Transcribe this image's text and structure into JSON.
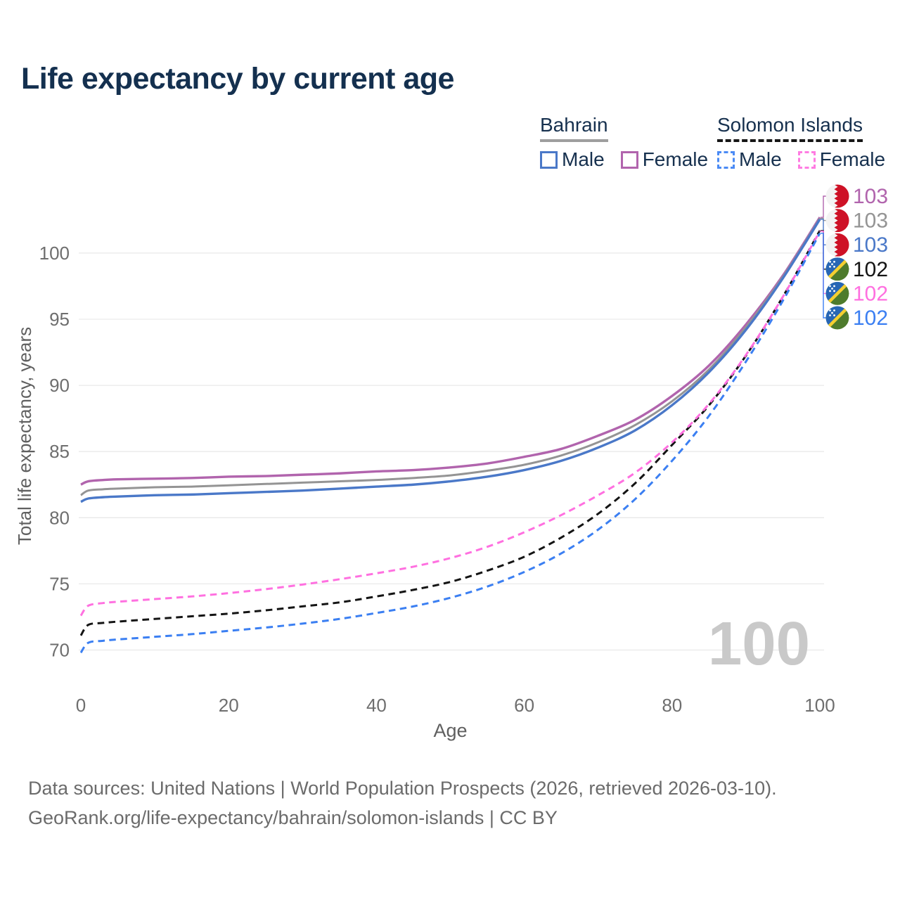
{
  "title": "Life expectancy by current age",
  "legend": {
    "groups": [
      {
        "name": "Bahrain",
        "underline_style": "solid",
        "underline_color": "#9e9e9e",
        "items": [
          {
            "label": "Male",
            "color": "#4a78c8",
            "dashed": false
          },
          {
            "label": "Female",
            "color": "#b164ad",
            "dashed": false
          }
        ]
      },
      {
        "name": "Solomon Islands",
        "underline_style": "dashed",
        "underline_color": "#161616",
        "items": [
          {
            "label": "Male",
            "color": "#4b8bf5",
            "dashed": true
          },
          {
            "label": "Female",
            "color": "#ff7ce2",
            "dashed": true
          }
        ]
      }
    ]
  },
  "watermark": "100",
  "chart_data": {
    "type": "line",
    "title": "Life expectancy by current age",
    "xlabel": "Age",
    "ylabel": "Total life expectancy, years",
    "xlim": [
      0,
      100
    ],
    "ylim": [
      69,
      103.5
    ],
    "xticks": [
      0,
      20,
      40,
      60,
      80,
      100
    ],
    "yticks": [
      70,
      75,
      80,
      85,
      90,
      95,
      100
    ],
    "grid": "horizontal",
    "legend_position": "top-right",
    "x": [
      0,
      1,
      3,
      5,
      10,
      15,
      20,
      25,
      30,
      35,
      40,
      45,
      50,
      55,
      60,
      65,
      70,
      75,
      80,
      85,
      90,
      95,
      100
    ],
    "series": [
      {
        "name": "Bahrain — Female",
        "country": "Bahrain",
        "sex": "Female",
        "color": "#b164ad",
        "dash": "solid",
        "end_label": "103",
        "flag": "bahrain",
        "label_row": 0,
        "values": [
          82.5,
          82.75,
          82.85,
          82.9,
          82.95,
          83.0,
          83.1,
          83.15,
          83.25,
          83.35,
          83.5,
          83.6,
          83.8,
          84.1,
          84.6,
          85.2,
          86.2,
          87.4,
          89.2,
          91.5,
          94.6,
          98.3,
          102.7
        ]
      },
      {
        "name": "Bahrain — Both sexes",
        "country": "Bahrain",
        "sex": "Both sexes",
        "color": "#949494",
        "dash": "solid",
        "end_label": "103",
        "flag": "bahrain",
        "label_row": 1,
        "values": [
          81.7,
          82.05,
          82.15,
          82.2,
          82.3,
          82.35,
          82.45,
          82.55,
          82.65,
          82.75,
          82.85,
          83.0,
          83.2,
          83.55,
          84.0,
          84.7,
          85.7,
          87.0,
          88.8,
          91.2,
          94.4,
          98.2,
          102.62
        ]
      },
      {
        "name": "Bahrain — Male",
        "country": "Bahrain",
        "sex": "Male",
        "color": "#4a78c8",
        "dash": "solid",
        "end_label": "103",
        "flag": "bahrain",
        "label_row": 2,
        "values": [
          81.2,
          81.45,
          81.55,
          81.6,
          81.7,
          81.75,
          81.85,
          81.95,
          82.05,
          82.2,
          82.35,
          82.5,
          82.75,
          83.1,
          83.6,
          84.3,
          85.3,
          86.6,
          88.5,
          91.0,
          94.2,
          98.1,
          102.55
        ]
      },
      {
        "name": "Solomon Islands — Both sexes",
        "country": "Solomon Islands",
        "sex": "Both sexes",
        "color": "#141414",
        "dash": "dashed",
        "end_label": "102",
        "flag": "solomon",
        "label_row": 3,
        "values": [
          71.1,
          71.9,
          72.05,
          72.15,
          72.35,
          72.55,
          72.75,
          73.0,
          73.3,
          73.6,
          74.05,
          74.55,
          75.15,
          76.0,
          77.05,
          78.5,
          80.3,
          82.6,
          85.5,
          88.5,
          92.25,
          96.7,
          101.7
        ]
      },
      {
        "name": "Solomon Islands — Female",
        "country": "Solomon Islands",
        "sex": "Female",
        "color": "#ff70e0",
        "dash": "dashed",
        "end_label": "102",
        "flag": "solomon",
        "label_row": 4,
        "values": [
          72.6,
          73.35,
          73.55,
          73.65,
          73.85,
          74.05,
          74.3,
          74.6,
          74.95,
          75.35,
          75.8,
          76.3,
          76.95,
          77.8,
          78.9,
          80.2,
          81.7,
          83.4,
          85.7,
          88.6,
          92.3,
          96.7,
          101.65
        ]
      },
      {
        "name": "Solomon Islands — Male",
        "country": "Solomon Islands",
        "sex": "Male",
        "color": "#3b7ff2",
        "dash": "dashed",
        "end_label": "102",
        "flag": "solomon",
        "label_row": 5,
        "values": [
          69.8,
          70.55,
          70.7,
          70.8,
          71.0,
          71.2,
          71.45,
          71.7,
          72.0,
          72.35,
          72.8,
          73.3,
          73.95,
          74.8,
          75.9,
          77.3,
          79.1,
          81.4,
          84.3,
          87.7,
          91.8,
          96.4,
          101.5
        ]
      }
    ]
  },
  "footer": {
    "line1": "Data sources: United Nations | World Population Prospects (2026, retrieved 2026-03-10).",
    "line2": "GeoRank.org/life-expectancy/bahrain/solomon-islands | CC BY"
  }
}
